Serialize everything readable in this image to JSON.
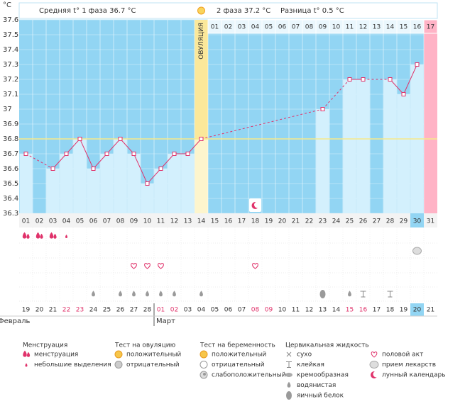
{
  "chart_data": {
    "type": "line",
    "unit": "°C",
    "phase1_text": "Средняя t° 1 фаза 36.7 °C",
    "phase2_text": "2 фаза 37.2 °C",
    "difference_text": "Разница t° 0.5 °C",
    "ovulation_label": "ОВУЛЯЦИЯ",
    "ovulation_day": "14",
    "categories": [
      "01",
      "02",
      "03",
      "04",
      "05",
      "06",
      "07",
      "08",
      "09",
      "10",
      "11",
      "12",
      "13",
      "14",
      "15",
      "16",
      "17",
      "18",
      "19",
      "20",
      "21",
      "22",
      "23",
      "24",
      "25",
      "26",
      "27",
      "28",
      "29",
      "30",
      "31"
    ],
    "values": [
      36.7,
      null,
      36.6,
      36.7,
      36.8,
      36.6,
      36.7,
      36.8,
      36.7,
      36.5,
      36.6,
      36.7,
      36.7,
      36.8,
      null,
      null,
      null,
      null,
      null,
      null,
      null,
      null,
      37.0,
      null,
      37.2,
      37.2,
      null,
      37.2,
      37.1,
      37.3,
      null
    ],
    "color": "#e0336b",
    "coverline": 36.8,
    "ylim": [
      36.3,
      37.6
    ],
    "yticks": [
      36.3,
      36.4,
      36.5,
      36.6,
      36.7,
      36.8,
      36.9,
      37,
      37.1,
      37.2,
      37.3,
      37.4,
      37.5,
      37.6
    ],
    "grid": true,
    "phase2_start_day": "15",
    "phase2_days": [
      "01",
      "02",
      "03",
      "04",
      "05",
      "06",
      "07",
      "08",
      "09",
      "10",
      "11",
      "12",
      "13",
      "14",
      "15",
      "16",
      "17"
    ],
    "period_day": "31",
    "selected_day": "30",
    "dates": [
      "19",
      "20",
      "21",
      "22",
      "23",
      "24",
      "25",
      "26",
      "27",
      "28",
      "01",
      "02",
      "03",
      "04",
      "05",
      "06",
      "07",
      "08",
      "09",
      "10",
      "11",
      "12",
      "13",
      "14",
      "15",
      "16",
      "17",
      "18",
      "19",
      "20",
      "21"
    ],
    "weekend_days": [
      "04",
      "05",
      "11",
      "12",
      "18",
      "19",
      "25",
      "26"
    ],
    "months": [
      {
        "label": "Февраль",
        "day": "01"
      },
      {
        "label": "Март",
        "day": "11"
      }
    ],
    "lunar_days": [
      "18"
    ],
    "symbols": [
      {
        "row": "menstruation",
        "kind": "heavy",
        "days": [
          "01",
          "02",
          "03"
        ]
      },
      {
        "row": "menstruation",
        "kind": "light",
        "days": [
          "04"
        ]
      },
      {
        "row": "medicine",
        "kind": "medicine",
        "days": [
          "30"
        ]
      },
      {
        "row": "intercourse",
        "kind": "heart",
        "days": [
          "09",
          "10",
          "11",
          "18"
        ]
      },
      {
        "row": "cervical",
        "kind": "watery",
        "days": [
          "06",
          "08",
          "09",
          "10",
          "11",
          "12",
          "14",
          "25"
        ]
      },
      {
        "row": "cervical",
        "kind": "eggwhite",
        "days": [
          "23"
        ]
      },
      {
        "row": "cervical",
        "kind": "sticky",
        "days": [
          "26",
          "28"
        ]
      }
    ],
    "legend": [
      {
        "title": "Менструация",
        "items": [
          {
            "label": "менструация",
            "icon": "heavy"
          },
          {
            "label": "небольшие выделения",
            "icon": "light"
          }
        ]
      },
      {
        "title": "Тест на овуляцию",
        "items": [
          {
            "label": "положительный",
            "icon": "pos"
          },
          {
            "label": "отрицательный",
            "icon": "neg"
          }
        ]
      },
      {
        "title": "Тест на беременность",
        "items": [
          {
            "label": "положительный",
            "icon": "pos"
          },
          {
            "label": "отрицательный",
            "icon": "negwhite"
          },
          {
            "label": "слабоположительный",
            "icon": "weak"
          }
        ]
      },
      {
        "title": "Цервикальная жидкость",
        "items": [
          {
            "label": "сухо",
            "icon": "dry"
          },
          {
            "label": "клейкая",
            "icon": "sticky"
          },
          {
            "label": "кремообразная",
            "icon": "creamy"
          },
          {
            "label": "водянистая",
            "icon": "watery"
          },
          {
            "label": "яичный белок",
            "icon": "eggwhite"
          }
        ]
      },
      {
        "items": [
          {
            "label": "половой акт",
            "icon": "heart"
          },
          {
            "label": "прием лекарств",
            "icon": "medicine"
          },
          {
            "label": "лунный календарь",
            "icon": "moon"
          }
        ]
      }
    ]
  }
}
